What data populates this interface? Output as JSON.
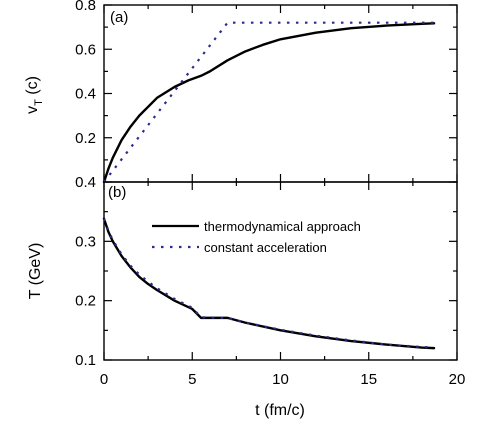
{
  "colors": {
    "thermo": "#000000",
    "const": "#2b2b8f",
    "axes": "#000000"
  },
  "chart_data": [
    {
      "type": "line",
      "panel_label": "(a)",
      "xlabel": "",
      "ylabel": "v_T (c)",
      "ylabel_main": "v",
      "ylabel_sub": "T",
      "ylabel_unit": " (c)",
      "xlim": [
        0,
        20
      ],
      "ylim": [
        0.0,
        0.8
      ],
      "yticks": [
        0.2,
        0.4,
        0.6,
        0.8
      ],
      "ytick_labels": [
        "0.2",
        "0.4",
        "0.6",
        "0.8"
      ],
      "grid": false,
      "series": [
        {
          "key": "thermo",
          "style": "solid",
          "x": [
            0,
            0.25,
            0.5,
            1,
            1.5,
            2,
            3,
            4,
            4.8,
            5.5,
            6,
            7,
            8,
            9,
            10,
            12,
            14,
            16,
            18,
            18.7
          ],
          "y": [
            0.0,
            0.06,
            0.11,
            0.19,
            0.25,
            0.3,
            0.38,
            0.43,
            0.46,
            0.48,
            0.5,
            0.55,
            0.59,
            0.62,
            0.645,
            0.675,
            0.695,
            0.707,
            0.715,
            0.717
          ]
        },
        {
          "key": "const",
          "style": "dotted",
          "x": [
            0,
            7,
            18.7
          ],
          "y": [
            0.0,
            0.72,
            0.72
          ]
        }
      ]
    },
    {
      "type": "line",
      "panel_label": "(b)",
      "xlabel": "t (fm/c)",
      "ylabel": "T (GeV)",
      "xlim": [
        0,
        20
      ],
      "ylim": [
        0.1,
        0.4
      ],
      "xticks": [
        0,
        5,
        10,
        15,
        20
      ],
      "xtick_labels": [
        "0",
        "5",
        "10",
        "15",
        "20"
      ],
      "yticks": [
        0.1,
        0.2,
        0.3,
        0.4
      ],
      "ytick_labels": [
        "0.1",
        "0.2",
        "0.3",
        "0.4"
      ],
      "grid": false,
      "legend_position": "upper-right",
      "series": [
        {
          "key": "thermo",
          "name": "thermodynamical approach",
          "style": "solid",
          "x": [
            0,
            0.25,
            0.5,
            1,
            1.5,
            2,
            2.5,
            3,
            4,
            5,
            5.5,
            7,
            8,
            10,
            12,
            14,
            16,
            18,
            18.7
          ],
          "y": [
            0.338,
            0.316,
            0.3,
            0.275,
            0.256,
            0.24,
            0.228,
            0.218,
            0.2,
            0.186,
            0.171,
            0.171,
            0.163,
            0.15,
            0.14,
            0.132,
            0.126,
            0.121,
            0.12
          ]
        },
        {
          "key": "const",
          "name": "constant acceleration",
          "style": "dotted",
          "x": [
            0,
            0.25,
            0.5,
            1,
            1.5,
            2,
            2.5,
            3,
            4,
            5,
            5.5,
            7,
            8,
            10,
            12,
            14,
            16,
            18,
            18.7
          ],
          "y": [
            0.338,
            0.318,
            0.302,
            0.278,
            0.259,
            0.244,
            0.232,
            0.221,
            0.203,
            0.188,
            0.172,
            0.171,
            0.163,
            0.151,
            0.141,
            0.133,
            0.126,
            0.122,
            0.121
          ]
        }
      ]
    }
  ]
}
